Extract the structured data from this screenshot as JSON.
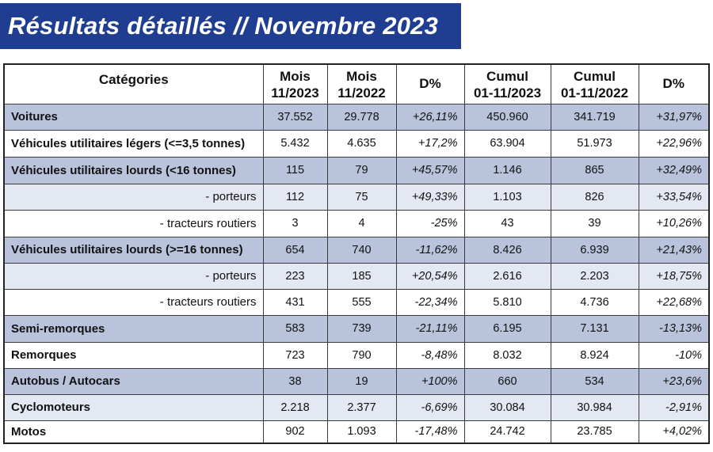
{
  "title": "Résultats détaillés // Novembre 2023",
  "headers": {
    "categories": "Catégories",
    "mois_2023_l1": "Mois",
    "mois_2023_l2": "11/2023",
    "mois_2022_l1": "Mois",
    "mois_2022_l2": "11/2022",
    "d1": "D%",
    "cumul_2023_l1": "Cumul",
    "cumul_2023_l2": "01-11/2023",
    "cumul_2022_l1": "Cumul",
    "cumul_2022_l2": "01-11/2022",
    "d2": "D%"
  },
  "rows": [
    {
      "label": "Voitures",
      "m2023": "37.552",
      "m2022": "29.778",
      "d1": "+26,11%",
      "c2023": "450.960",
      "c2022": "341.719",
      "d2": "+31,97%"
    },
    {
      "label": "Véhicules utilitaires légers (<=3,5 tonnes)",
      "m2023": "5.432",
      "m2022": "4.635",
      "d1": "+17,2%",
      "c2023": "63.904",
      "c2022": "51.973",
      "d2": "+22,96%"
    },
    {
      "label": "Véhicules utilitaires lourds (<16 tonnes)",
      "m2023": "115",
      "m2022": "79",
      "d1": "+45,57%",
      "c2023": "1.146",
      "c2022": "865",
      "d2": "+32,49%"
    },
    {
      "label": "- porteurs",
      "m2023": "112",
      "m2022": "75",
      "d1": "+49,33%",
      "c2023": "1.103",
      "c2022": "826",
      "d2": "+33,54%"
    },
    {
      "label": "- tracteurs routiers",
      "m2023": "3",
      "m2022": "4",
      "d1": "-25%",
      "c2023": "43",
      "c2022": "39",
      "d2": "+10,26%"
    },
    {
      "label": "Véhicules utilitaires lourds (>=16 tonnes)",
      "m2023": "654",
      "m2022": "740",
      "d1": "-11,62%",
      "c2023": "8.426",
      "c2022": "6.939",
      "d2": "+21,43%"
    },
    {
      "label": "- porteurs",
      "m2023": "223",
      "m2022": "185",
      "d1": "+20,54%",
      "c2023": "2.616",
      "c2022": "2.203",
      "d2": "+18,75%"
    },
    {
      "label": "- tracteurs routiers",
      "m2023": "431",
      "m2022": "555",
      "d1": "-22,34%",
      "c2023": "5.810",
      "c2022": "4.736",
      "d2": "+22,68%"
    },
    {
      "label": "Semi-remorques",
      "m2023": "583",
      "m2022": "739",
      "d1": "-21,11%",
      "c2023": "6.195",
      "c2022": "7.131",
      "d2": "-13,13%"
    },
    {
      "label": "Remorques",
      "m2023": "723",
      "m2022": "790",
      "d1": "-8,48%",
      "c2023": "8.032",
      "c2022": "8.924",
      "d2": "-10%"
    },
    {
      "label": "Autobus / Autocars",
      "m2023": "38",
      "m2022": "19",
      "d1": "+100%",
      "c2023": "660",
      "c2022": "534",
      "d2": "+23,6%"
    },
    {
      "label": "Cyclomoteurs",
      "m2023": "2.218",
      "m2022": "2.377",
      "d1": "-6,69%",
      "c2023": "30.084",
      "c2022": "30.984",
      "d2": "-2,91%"
    },
    {
      "label": "Motos",
      "m2023": "902",
      "m2022": "1.093",
      "d1": "-17,48%",
      "c2023": "24.742",
      "c2022": "23.785",
      "d2": "+4,02%"
    }
  ]
}
